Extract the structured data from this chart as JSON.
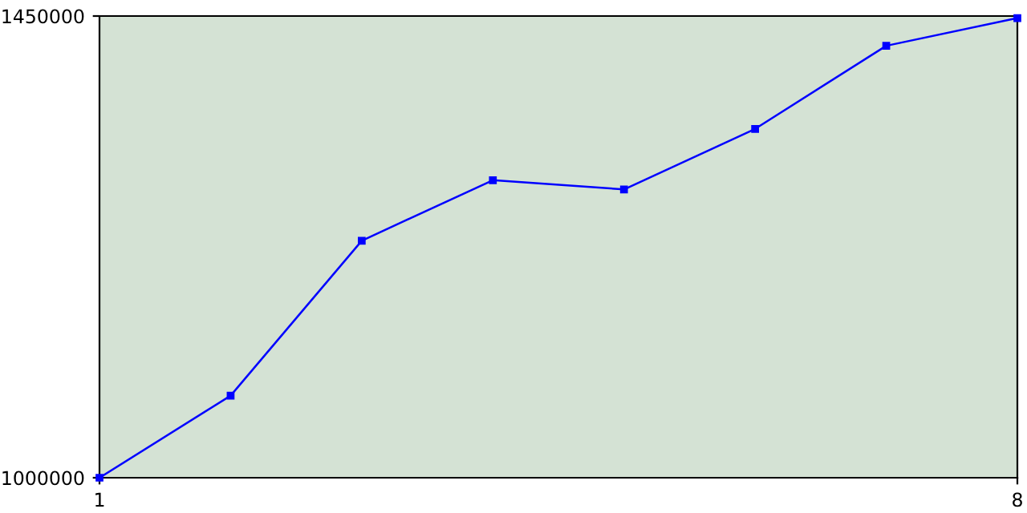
{
  "chart_data": {
    "type": "line",
    "x": [
      1,
      2,
      3,
      4,
      5,
      6,
      7,
      8
    ],
    "series": [
      {
        "color": "#0000ff",
        "values": [
          1000000,
          1080000,
          1231000,
          1290000,
          1281000,
          1340000,
          1421000,
          1448000
        ]
      }
    ],
    "xlim": [
      1,
      8
    ],
    "xticks": [
      1,
      8
    ],
    "ylim": [
      1000000,
      1450000
    ],
    "yticks": [
      1000000,
      1450000
    ],
    "marker": "square",
    "line_style": "solid",
    "grid": false
  }
}
